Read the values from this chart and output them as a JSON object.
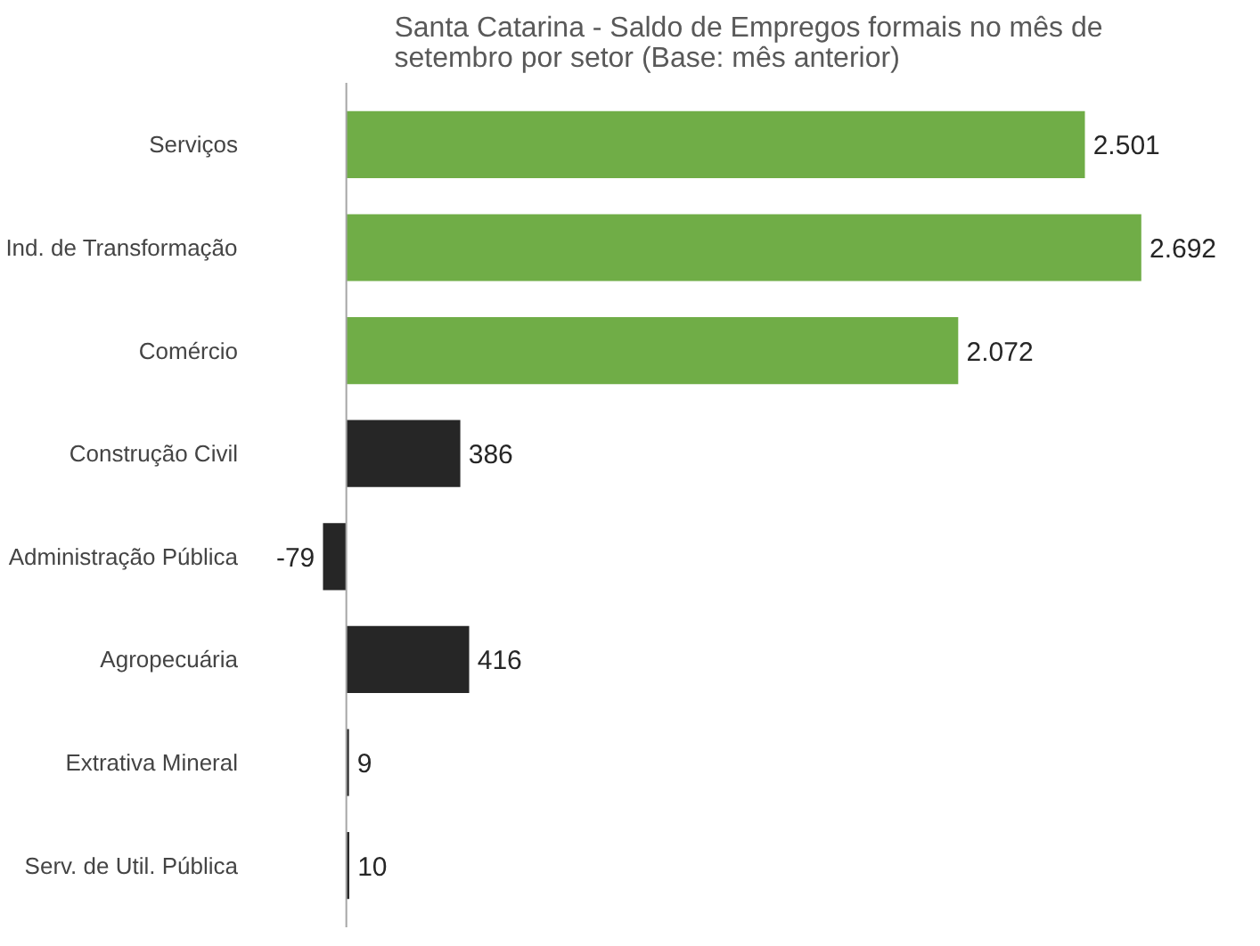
{
  "chart_data": {
    "type": "bar",
    "orientation": "horizontal",
    "title": "Santa Catarina - Saldo de Empregos formais no mês de setembro por setor (Base: mês anterior)",
    "categories": [
      "Serviços",
      "Ind. de Transformação",
      "Comércio",
      "Construção Civil",
      "Administração Pública",
      "Agropecuária",
      "Extrativa Mineral",
      "Serv. de Util. Pública"
    ],
    "values": [
      2501,
      2692,
      2072,
      386,
      -79,
      416,
      9,
      10
    ],
    "colors": [
      "#70ad47",
      "#70ad47",
      "#70ad47",
      "#262626",
      "#262626",
      "#262626",
      "#262626",
      "#262626"
    ],
    "value_labels": [
      "2.501",
      "2.692",
      "2.072",
      "386",
      "-79",
      "416",
      "9",
      "10"
    ],
    "grid": false
  }
}
